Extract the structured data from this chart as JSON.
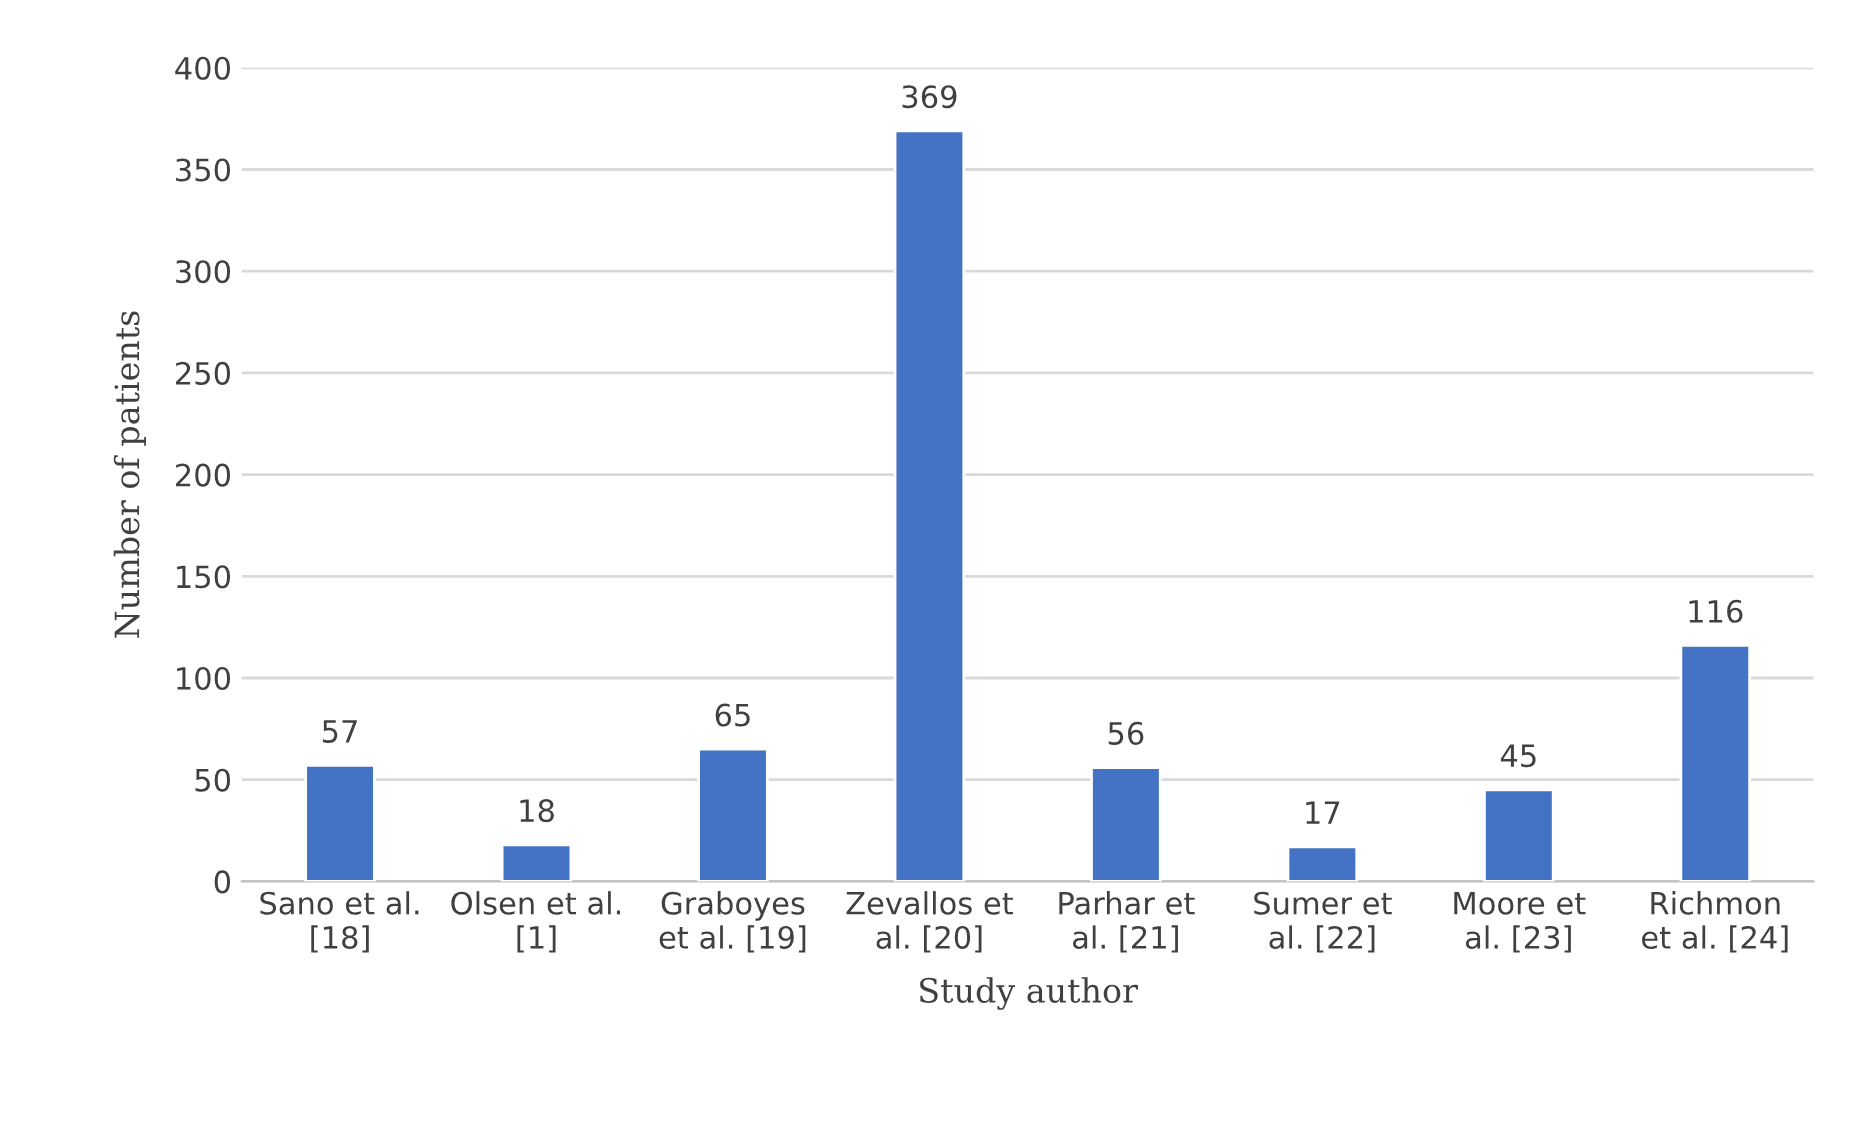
{
  "chart_data": {
    "type": "bar",
    "xlabel": "Study author",
    "ylabel": "Number of patients",
    "categories": [
      "Sano et al.\n[18]",
      "Olsen et al.\n[1]",
      "Graboyes\net al. [19]",
      "Zevallos et\nal. [20]",
      "Parhar et\nal. [21]",
      "Sumer et\nal. [22]",
      "Moore et\nal. [23]",
      "Richmon\net al. [24]"
    ],
    "values": [
      57,
      18,
      65,
      369,
      56,
      17,
      45,
      116
    ],
    "color": "#4472c4",
    "ylim": [
      0,
      400
    ],
    "yticks": [
      0,
      50,
      100,
      150,
      200,
      250,
      300,
      350,
      400
    ],
    "grid": "y",
    "data_labels": true
  }
}
